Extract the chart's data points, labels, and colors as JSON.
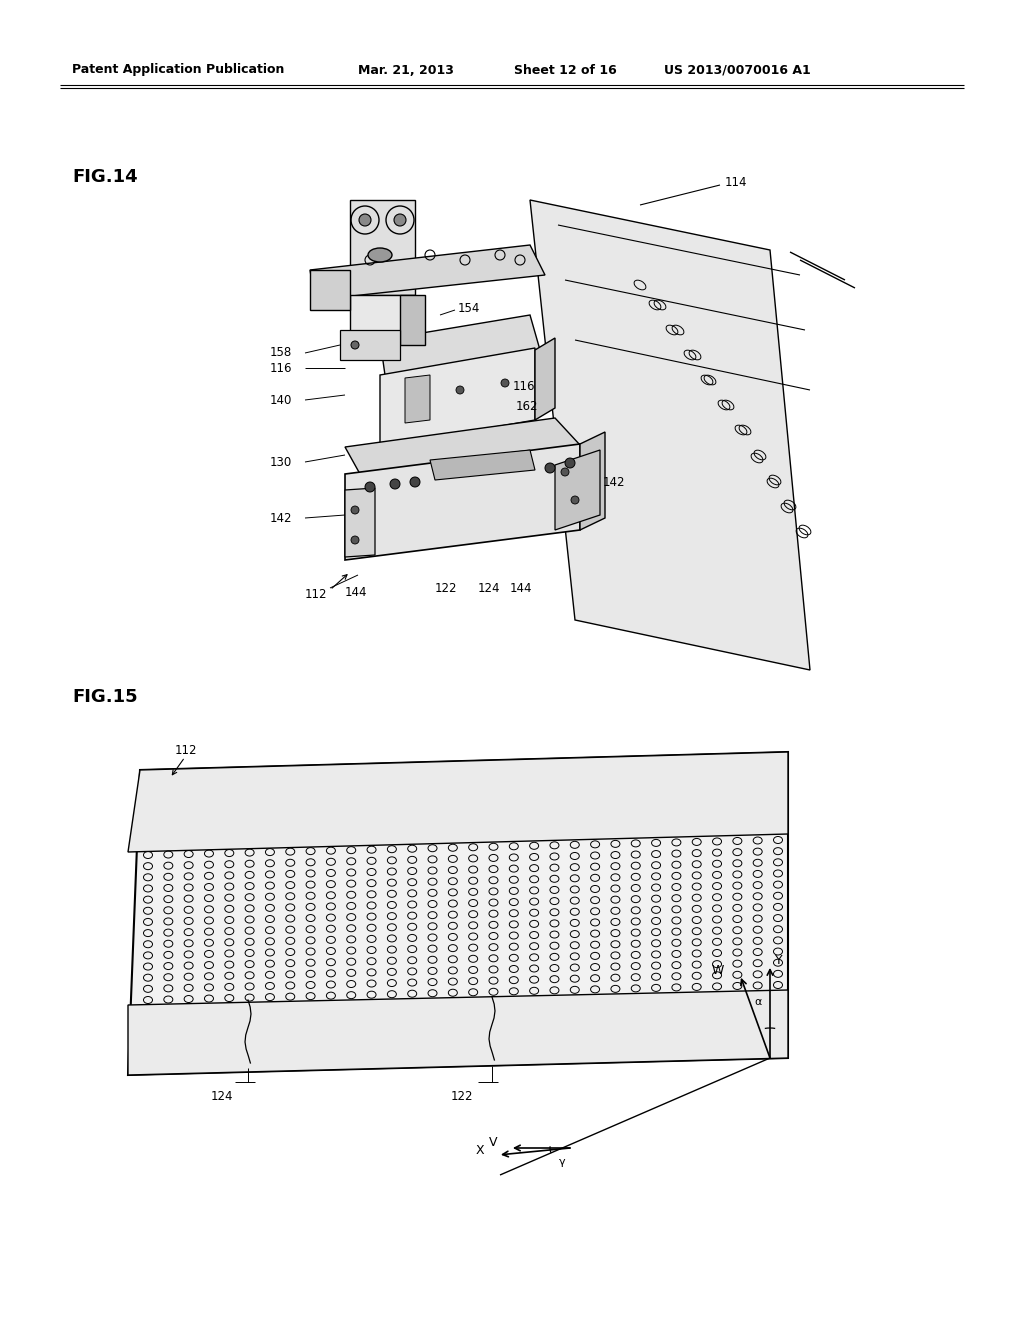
{
  "background_color": "#ffffff",
  "header_text": "Patent Application Publication",
  "header_date": "Mar. 21, 2013",
  "header_sheet": "Sheet 12 of 16",
  "header_patent": "US 2013/0070016 A1",
  "fig14_label": "FIG.14",
  "fig15_label": "FIG.15",
  "line_color": "#000000",
  "text_color": "#000000",
  "font_size_header": 9,
  "font_size_fig_label": 13,
  "font_size_ref": 8.5
}
